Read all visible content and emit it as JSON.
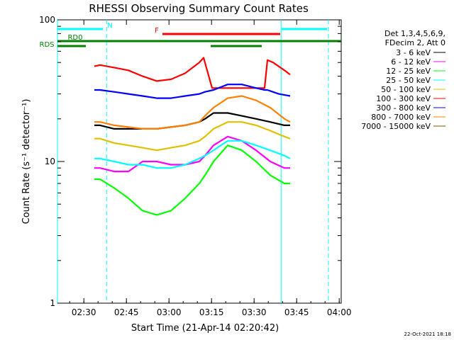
{
  "chart_data": {
    "type": "line",
    "title": "RHESSI Observing Summary Count Rates",
    "xlabel": "Start Time (21-Apr-14 02:20:42)",
    "ylabel": "Count Rate (s⁻¹ detector⁻¹)",
    "yscale": "log",
    "ylim": [
      1,
      100
    ],
    "y_ticks": [
      1,
      10,
      100
    ],
    "y_tick_labels": [
      "1",
      "10",
      "100"
    ],
    "xlim_minutes": [
      0,
      100
    ],
    "x_ticks_minutes": [
      9.3,
      24.3,
      39.3,
      54.3,
      69.3,
      84.3,
      99.3
    ],
    "x_tick_labels": [
      "02:30",
      "02:45",
      "03:00",
      "03:15",
      "03:30",
      "03:45",
      "04:00"
    ],
    "legend": {
      "header": [
        "Det 1,3,4,5,6,9,",
        "FDecim 2, Att 0"
      ],
      "placement": "right"
    },
    "series": [
      {
        "name": "3 - 6 keV",
        "color": "#000000",
        "x": [
          13,
          15,
          20,
          25,
          30,
          35,
          40,
          45,
          50,
          52,
          55,
          60,
          65,
          70,
          75,
          80,
          82
        ],
        "y": [
          18,
          18,
          17,
          17,
          17,
          17,
          17.5,
          18,
          19,
          20,
          22,
          22,
          21,
          20,
          19,
          18,
          18
        ]
      },
      {
        "name": "6 - 12 keV",
        "color": "#ff00ff",
        "x": [
          13,
          15,
          20,
          25,
          30,
          35,
          40,
          45,
          50,
          52,
          55,
          60,
          65,
          70,
          75,
          80,
          82
        ],
        "y": [
          9,
          9,
          8.5,
          8.5,
          10,
          10,
          9.5,
          9.5,
          10,
          11,
          13,
          15,
          14,
          12,
          10,
          9,
          9
        ]
      },
      {
        "name": "12 - 25 keV",
        "color": "#00ff00",
        "x": [
          13,
          15,
          20,
          25,
          30,
          35,
          40,
          45,
          50,
          52,
          55,
          60,
          65,
          70,
          75,
          80,
          82
        ],
        "y": [
          7.5,
          7.5,
          6.5,
          5.5,
          4.5,
          4.2,
          4.5,
          5.5,
          7,
          8,
          10,
          13,
          12,
          10,
          8,
          7,
          7
        ]
      },
      {
        "name": "25 - 50 keV",
        "color": "#00ffff",
        "x": [
          13,
          15,
          20,
          25,
          30,
          35,
          40,
          45,
          50,
          52,
          55,
          60,
          65,
          70,
          75,
          80,
          82
        ],
        "y": [
          10.5,
          10.5,
          10,
          9.5,
          9.5,
          9,
          9,
          9.5,
          10.5,
          11,
          12,
          14,
          14,
          13,
          12,
          11,
          10.5
        ]
      },
      {
        "name": "50 - 100 keV",
        "color": "#e0c000",
        "x": [
          13,
          15,
          20,
          25,
          30,
          35,
          40,
          45,
          50,
          52,
          55,
          60,
          65,
          70,
          75,
          80,
          82
        ],
        "y": [
          14.5,
          14.5,
          13.5,
          13,
          12.5,
          12,
          12.5,
          13,
          14,
          15,
          17,
          19,
          19,
          18,
          16.5,
          15,
          14.5
        ]
      },
      {
        "name": "100 - 300 keV",
        "color": "#ff0000",
        "x": [
          13,
          15,
          20,
          25,
          30,
          35,
          40,
          45,
          50,
          51.5,
          54.5,
          73,
          74,
          76,
          80,
          82
        ],
        "y": [
          47,
          48,
          46,
          44,
          40,
          37,
          38,
          42,
          50,
          54,
          33,
          33,
          52,
          50,
          44,
          41
        ]
      },
      {
        "name": "300 - 800 keV",
        "color": "#0000ff",
        "x": [
          13,
          15,
          20,
          25,
          30,
          35,
          40,
          45,
          50,
          52,
          55,
          60,
          65,
          70,
          73,
          74,
          78,
          82
        ],
        "y": [
          32,
          32,
          31,
          30,
          29,
          28,
          28,
          29,
          30,
          31,
          32,
          35,
          35,
          33,
          32,
          32,
          30,
          29
        ]
      },
      {
        "name": "800 - 7000 keV",
        "color": "#ff8000",
        "x": [
          13,
          15,
          20,
          25,
          30,
          35,
          40,
          45,
          50,
          52,
          55,
          60,
          65,
          70,
          75,
          80,
          82
        ],
        "y": [
          19,
          19,
          18,
          17.5,
          17,
          17,
          17.5,
          18,
          19,
          21,
          24,
          28,
          29,
          27,
          24,
          20,
          19
        ]
      },
      {
        "name": "7000 - 15000 keV",
        "color": "#805000",
        "x": [],
        "y": []
      }
    ],
    "annotations": {
      "vertical_lines": [
        {
          "x": 0,
          "style": "solid",
          "color": "#00ffff"
        },
        {
          "x": 17.3,
          "style": "dashed",
          "color": "#00ffff"
        },
        {
          "x": 78.8,
          "style": "solid",
          "color": "#00ffff"
        },
        {
          "x": 95.5,
          "style": "dashed",
          "color": "#00ffff"
        }
      ],
      "bars": [
        {
          "label": "N",
          "color": "#00ffff",
          "segments": [
            [
              0,
              16
            ],
            [
              79,
              95
            ]
          ]
        },
        {
          "label": "F",
          "color": "#ff0000",
          "segments": [
            [
              37,
              78.5
            ]
          ]
        },
        {
          "label": "RD0",
          "color": "#008000",
          "segments": [
            [
              0,
              100
            ]
          ]
        },
        {
          "label": "RDS",
          "color": "#008000",
          "segments": [
            [
              0,
              10
            ],
            [
              54,
              72
            ]
          ]
        }
      ]
    }
  },
  "footer": {
    "date": "22-Oct-2021 18:18"
  }
}
